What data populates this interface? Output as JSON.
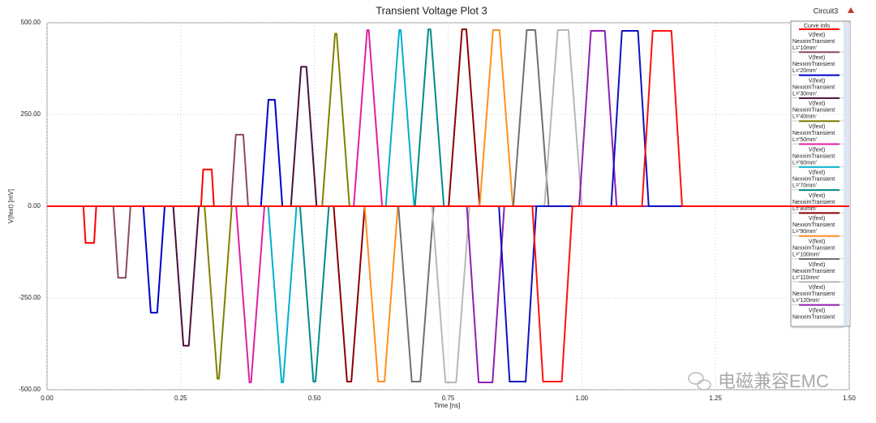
{
  "chart_data": {
    "type": "line",
    "title": "Transient Voltage Plot 3",
    "corner_label": "Circuit3",
    "legend_title": "Curve Info",
    "x_label": "Time [ns]",
    "y_label": "V(fext) [mV]",
    "watermark": "电磁兼容EMC",
    "xlim": [
      0,
      1.5
    ],
    "ylim": [
      -500,
      500
    ],
    "grid": true,
    "legend": "right",
    "xticks": [
      {
        "value": 0,
        "label": "0.00"
      },
      {
        "value": 0.25,
        "label": "0.25"
      },
      {
        "value": 0.5,
        "label": "0.50"
      },
      {
        "value": 0.75,
        "label": "0.75"
      },
      {
        "value": 1,
        "label": "1.00"
      },
      {
        "value": 1.25,
        "label": "1.25"
      },
      {
        "value": 1.5,
        "label": "1.50"
      }
    ],
    "yticks": [
      {
        "value": 500,
        "label": "500.00"
      },
      {
        "value": 250,
        "label": "250.00"
      },
      {
        "value": 0,
        "label": "0.00"
      },
      {
        "value": -250,
        "label": "-250.00"
      },
      {
        "value": -500,
        "label": "-500.00"
      }
    ],
    "series": [
      {
        "name": "V(fext)",
        "solution": "NexximTransient",
        "variation": "L='10mm'",
        "color": "#ff0000",
        "x": [
          0,
          0.068,
          0.072,
          0.088,
          0.092,
          0.288,
          0.292,
          0.308,
          0.312,
          1.5
        ],
        "values": [
          0,
          0,
          -100,
          -100,
          0,
          0,
          100,
          100,
          0,
          0
        ]
      },
      {
        "name": "V(fext)",
        "solution": "NexximTransient",
        "variation": "L='20mm'",
        "color": "#8b4a62",
        "x": [
          0,
          0.124,
          0.133,
          0.147,
          0.156,
          0.344,
          0.353,
          0.367,
          0.376,
          1.5
        ],
        "values": [
          0,
          0,
          -195,
          -195,
          0,
          0,
          195,
          195,
          0,
          0
        ]
      },
      {
        "name": "V(fext)",
        "solution": "NexximTransient",
        "variation": "L='30mm'",
        "color": "#0000cc",
        "x": [
          0,
          0.18,
          0.194,
          0.206,
          0.22,
          0.4,
          0.414,
          0.426,
          0.44,
          1.5
        ],
        "values": [
          0,
          0,
          -290,
          -290,
          0,
          0,
          290,
          290,
          0,
          0
        ]
      },
      {
        "name": "V(fext)",
        "solution": "NexximTransient",
        "variation": "L='40mm'",
        "color": "#4b0f3b",
        "x": [
          0,
          0.236,
          0.255,
          0.265,
          0.284,
          0.456,
          0.475,
          0.485,
          0.504,
          1.5
        ],
        "values": [
          0,
          0,
          -380,
          -380,
          0,
          0,
          380,
          380,
          0,
          0
        ]
      },
      {
        "name": "V(fext)",
        "solution": "NexximTransient",
        "variation": "L='50mm'",
        "color": "#808000",
        "x": [
          0,
          0.2945,
          0.3185,
          0.3215,
          0.3455,
          0.5145,
          0.5385,
          0.5415,
          0.5655,
          1.5
        ],
        "values": [
          0,
          0,
          -470,
          -470,
          0,
          0,
          470,
          470,
          0,
          0
        ]
      },
      {
        "name": "V(fext)",
        "solution": "NexximTransient",
        "variation": "L='60mm'",
        "color": "#e0209f",
        "x": [
          0,
          0.3535,
          0.3785,
          0.3815,
          0.4065,
          0.5735,
          0.5985,
          0.6015,
          0.6265,
          1.5
        ],
        "values": [
          0,
          0,
          -480,
          -480,
          0,
          0,
          480,
          480,
          0,
          0
        ]
      },
      {
        "name": "V(fext)",
        "solution": "NexximTransient",
        "variation": "L='70mm'",
        "color": "#00b0d0",
        "x": [
          0,
          0.4135,
          0.4385,
          0.4415,
          0.4665,
          0.6335,
          0.6585,
          0.6615,
          0.6865,
          1.5
        ],
        "values": [
          0,
          0,
          -480,
          -480,
          0,
          0,
          480,
          480,
          0,
          0
        ]
      },
      {
        "name": "V(fext)",
        "solution": "NexximTransient",
        "variation": "L='80mm'",
        "color": "#008b8b",
        "x": [
          0,
          0.473,
          0.498,
          0.502,
          0.527,
          0.688,
          0.713,
          0.717,
          0.742,
          1.5
        ],
        "values": [
          0,
          0,
          -478,
          -478,
          0,
          0,
          482,
          482,
          0,
          0
        ]
      },
      {
        "name": "V(fext)",
        "solution": "NexximTransient",
        "variation": "L='90mm'",
        "color": "#8b0000",
        "x": [
          0,
          0.536,
          0.561,
          0.569,
          0.594,
          0.751,
          0.776,
          0.784,
          0.809,
          1.5
        ],
        "values": [
          0,
          0,
          -478,
          -478,
          0,
          0,
          482,
          482,
          0,
          0
        ]
      },
      {
        "name": "V(fext)",
        "solution": "NexximTransient",
        "variation": "L='100mm'",
        "color": "#ff9020",
        "x": [
          0,
          0.594,
          0.619,
          0.631,
          0.656,
          0.809,
          0.834,
          0.846,
          0.871,
          1.5
        ],
        "values": [
          0,
          0,
          -478,
          -478,
          0,
          0,
          480,
          480,
          0,
          0
        ]
      },
      {
        "name": "V(fext)",
        "solution": "NexximTransient",
        "variation": "L='110mm'",
        "color": "#707070",
        "x": [
          0,
          0.657,
          0.682,
          0.698,
          0.723,
          0.872,
          0.897,
          0.913,
          0.938,
          1.5
        ],
        "values": [
          0,
          0,
          -478,
          -478,
          0,
          0,
          480,
          480,
          0,
          0
        ]
      },
      {
        "name": "V(fext)",
        "solution": "NexximTransient",
        "variation": "L='120mm'",
        "color": "#b8b8b8",
        "x": [
          0,
          0.72,
          0.745,
          0.765,
          0.79,
          0.93,
          0.955,
          0.975,
          1.0,
          1.5
        ],
        "values": [
          0,
          0,
          -480,
          -480,
          0,
          0,
          480,
          480,
          0,
          0
        ]
      },
      {
        "name": "V(fext)",
        "solution": "NexximTransient",
        "color": "#9020b0",
        "x": [
          0,
          0.785,
          0.807,
          0.833,
          0.855,
          0.995,
          1.017,
          1.043,
          1.065,
          1.5
        ],
        "values": [
          0,
          0,
          -480,
          -480,
          0,
          0,
          478,
          478,
          0,
          0
        ]
      },
      {
        "color": "#1010c0",
        "x": [
          0,
          0.845,
          0.865,
          0.895,
          0.915,
          1.055,
          1.075,
          1.105,
          1.125,
          1.5
        ],
        "values": [
          0,
          0,
          -478,
          -478,
          0,
          0,
          478,
          478,
          0,
          0
        ]
      },
      {
        "color": "#ff1010",
        "x": [
          0,
          0.9075,
          0.9275,
          0.9625,
          0.9825,
          1.1125,
          1.1325,
          1.1675,
          1.1875,
          1.5
        ],
        "values": [
          0,
          0,
          -478,
          -478,
          0,
          0,
          478,
          478,
          0,
          0
        ]
      }
    ]
  }
}
